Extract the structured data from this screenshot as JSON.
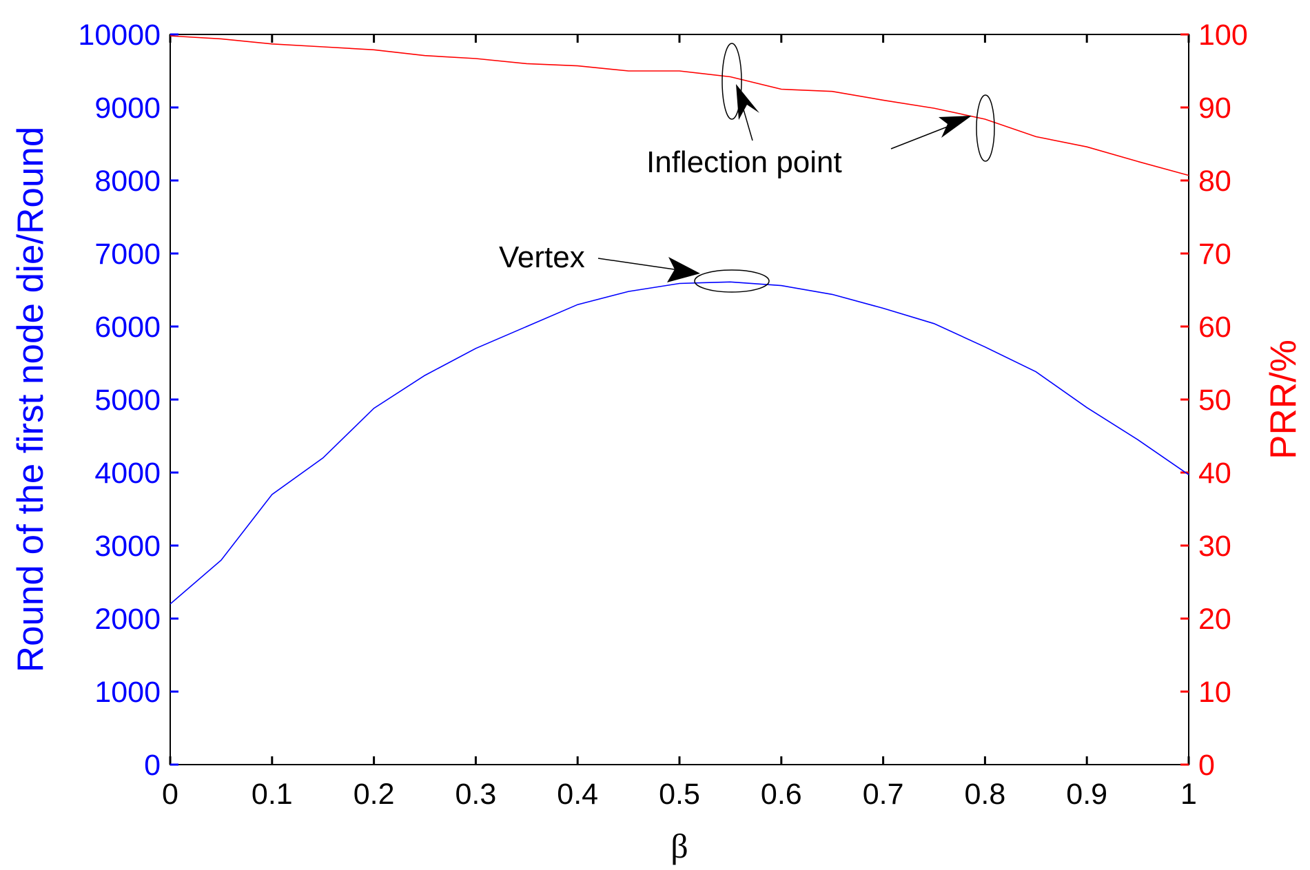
{
  "chart_data": {
    "type": "line",
    "xlabel": "β",
    "ylabel_left": "Round of the first node die/Round",
    "ylabel_right": "PRR/%",
    "xlim": [
      0,
      1
    ],
    "ylim_left": [
      0,
      10000
    ],
    "ylim_right": [
      0,
      100
    ],
    "grid": false,
    "x_ticks": [
      "0",
      "0.1",
      "0.2",
      "0.3",
      "0.4",
      "0.5",
      "0.6",
      "0.7",
      "0.8",
      "0.9",
      "1"
    ],
    "y_ticks_left": [
      "0",
      "1000",
      "2000",
      "3000",
      "4000",
      "5000",
      "6000",
      "7000",
      "8000",
      "9000",
      "10000"
    ],
    "y_ticks_right": [
      "0",
      "10",
      "20",
      "30",
      "40",
      "50",
      "60",
      "70",
      "80",
      "90",
      "100"
    ],
    "x": [
      0,
      0.05,
      0.1,
      0.15,
      0.2,
      0.25,
      0.3,
      0.35,
      0.4,
      0.45,
      0.5,
      0.55,
      0.6,
      0.65,
      0.7,
      0.75,
      0.8,
      0.85,
      0.9,
      0.95,
      1.0
    ],
    "series": [
      {
        "axis": "left",
        "color": "#0000ff",
        "values": [
          2200,
          2800,
          3700,
          4200,
          4880,
          5330,
          5700,
          6000,
          6300,
          6480,
          6590,
          6610,
          6560,
          6440,
          6250,
          6040,
          5720,
          5380,
          4890,
          4450,
          3970
        ]
      },
      {
        "axis": "right",
        "color": "#ff0000",
        "values": [
          99.8,
          99.4,
          98.7,
          98.3,
          97.9,
          97.1,
          96.7,
          96.0,
          95.7,
          95.0,
          95.0,
          94.2,
          92.5,
          92.2,
          91.0,
          89.9,
          88.4,
          86.0,
          84.6,
          82.6,
          80.7
        ]
      }
    ],
    "annotations": [
      {
        "text": "Inflection point"
      },
      {
        "text": "Vertex"
      }
    ]
  }
}
